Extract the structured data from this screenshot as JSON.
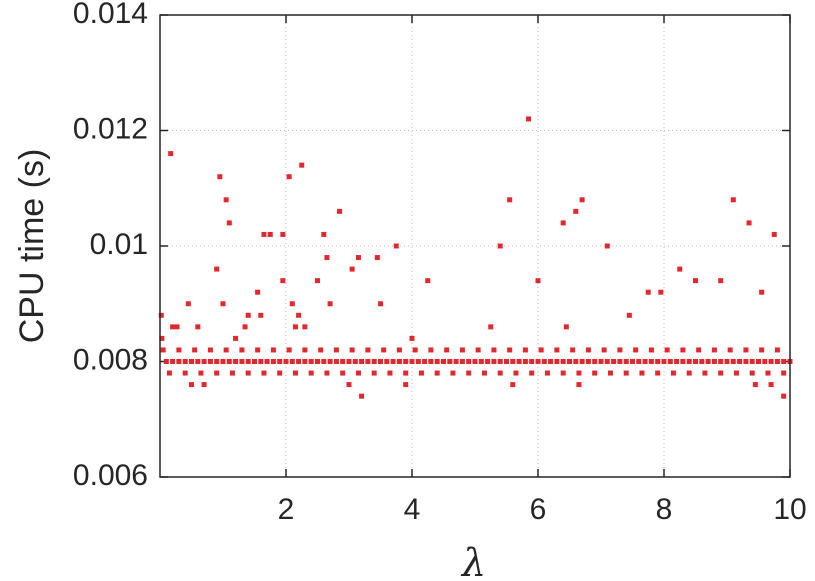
{
  "chart_data": {
    "type": "scatter",
    "x_label": "λ",
    "y_label": "CPU time (s)",
    "xlim": [
      0,
      10
    ],
    "ylim": [
      0.006,
      0.014
    ],
    "xticks": [
      2,
      4,
      6,
      8,
      10
    ],
    "yticks": [
      0.006,
      0.008,
      0.01,
      0.012,
      0.014
    ],
    "grid": true,
    "color": "#e0282e",
    "x": [
      0.1,
      0.2,
      0.3,
      0.4,
      0.5,
      0.6,
      0.7,
      0.8,
      0.9,
      1.0,
      1.1,
      1.2,
      1.3,
      1.4,
      1.5,
      1.6,
      1.7,
      1.8,
      1.9,
      2.0,
      2.1,
      2.2,
      2.3,
      2.4,
      2.5,
      2.6,
      2.7,
      2.8,
      2.9,
      3.0,
      3.1,
      3.2,
      3.3,
      3.4,
      3.5,
      3.6,
      3.7,
      3.8,
      3.9,
      4.0,
      4.1,
      4.2,
      4.3,
      4.4,
      4.5,
      4.6,
      4.7,
      4.8,
      4.9,
      5.0,
      5.1,
      5.2,
      5.3,
      5.4,
      5.5,
      5.6,
      5.7,
      5.8,
      5.9,
      6.0,
      6.1,
      6.2,
      6.3,
      6.4,
      6.5,
      6.6,
      6.7,
      6.8,
      6.9,
      7.0,
      7.1,
      7.2,
      7.3,
      7.4,
      7.5,
      7.6,
      7.7,
      7.8,
      7.9,
      8.0,
      8.1,
      8.2,
      8.3,
      8.4,
      8.5,
      8.6,
      8.7,
      8.8,
      8.9,
      9.0,
      9.1,
      9.2,
      9.3,
      9.4,
      9.5,
      9.6,
      9.7,
      9.8,
      9.9,
      10,
      0.05,
      0.3,
      0.55,
      0.8,
      1.05,
      1.3,
      1.55,
      1.8,
      2.05,
      2.3,
      2.55,
      2.8,
      3.05,
      3.3,
      3.55,
      3.8,
      4.05,
      4.3,
      4.55,
      4.8,
      5.05,
      5.3,
      5.55,
      5.8,
      6.05,
      6.3,
      6.55,
      6.8,
      7.05,
      7.3,
      7.55,
      7.8,
      8.05,
      8.3,
      8.55,
      8.8,
      9.05,
      9.3,
      9.55,
      9.8,
      0.15,
      0.4,
      0.65,
      0.9,
      1.15,
      1.4,
      1.65,
      1.9,
      2.15,
      2.4,
      2.65,
      2.9,
      3.15,
      3.4,
      3.65,
      3.9,
      4.15,
      4.4,
      4.65,
      4.9,
      5.15,
      5.4,
      5.65,
      5.9,
      6.15,
      6.4,
      6.65,
      6.9,
      7.15,
      7.4,
      7.65,
      7.9,
      8.15,
      8.4,
      8.65,
      8.9,
      9.15,
      9.4,
      9.65,
      9.9,
      0.02,
      0.03,
      0.17,
      0.2,
      0.27,
      0.45,
      0.5,
      0.6,
      0.7,
      0.9,
      0.95,
      1.0,
      1.05,
      1.1,
      1.2,
      1.35,
      1.4,
      1.55,
      1.6,
      1.65,
      1.75,
      1.95,
      1.95,
      2.05,
      2.1,
      2.15,
      2.2,
      2.25,
      2.3,
      2.5,
      2.6,
      2.65,
      2.7,
      2.85,
      3.05,
      3.15,
      3.2,
      3.45,
      3.5,
      3.75,
      3.9,
      4.0,
      4.25,
      5.25,
      5.4,
      5.55,
      5.85,
      6.0,
      6.4,
      6.45,
      6.6,
      6.7,
      7.1,
      7.45,
      7.75,
      7.95,
      8.25,
      8.5,
      8.9,
      9.1,
      9.35,
      9.55,
      9.75,
      9.9,
      9.45,
      9.7,
      6.65,
      5.6,
      3.0
    ],
    "values": [
      0.008,
      0.008,
      0.008,
      0.008,
      0.008,
      0.008,
      0.008,
      0.008,
      0.008,
      0.008,
      0.008,
      0.008,
      0.008,
      0.008,
      0.008,
      0.008,
      0.008,
      0.008,
      0.008,
      0.008,
      0.008,
      0.008,
      0.008,
      0.008,
      0.008,
      0.008,
      0.008,
      0.008,
      0.008,
      0.008,
      0.008,
      0.008,
      0.008,
      0.008,
      0.008,
      0.008,
      0.008,
      0.008,
      0.008,
      0.008,
      0.008,
      0.008,
      0.008,
      0.008,
      0.008,
      0.008,
      0.008,
      0.008,
      0.008,
      0.008,
      0.008,
      0.008,
      0.008,
      0.008,
      0.008,
      0.008,
      0.008,
      0.008,
      0.008,
      0.008,
      0.008,
      0.008,
      0.008,
      0.008,
      0.008,
      0.008,
      0.008,
      0.008,
      0.008,
      0.008,
      0.008,
      0.008,
      0.008,
      0.008,
      0.008,
      0.008,
      0.008,
      0.008,
      0.008,
      0.008,
      0.008,
      0.008,
      0.008,
      0.008,
      0.008,
      0.008,
      0.008,
      0.008,
      0.008,
      0.008,
      0.008,
      0.008,
      0.008,
      0.008,
      0.008,
      0.008,
      0.008,
      0.008,
      0.008,
      0.008,
      0.0082,
      0.0082,
      0.0082,
      0.0082,
      0.0082,
      0.0082,
      0.0082,
      0.0082,
      0.0082,
      0.0082,
      0.0082,
      0.0082,
      0.0082,
      0.0082,
      0.0082,
      0.0082,
      0.0082,
      0.0082,
      0.0082,
      0.0082,
      0.0082,
      0.0082,
      0.0082,
      0.0082,
      0.0082,
      0.0082,
      0.0082,
      0.0082,
      0.0082,
      0.0082,
      0.0082,
      0.0082,
      0.0082,
      0.0082,
      0.0082,
      0.0082,
      0.0082,
      0.0082,
      0.0082,
      0.0082,
      0.0078,
      0.0078,
      0.0078,
      0.0078,
      0.0078,
      0.0078,
      0.0078,
      0.0078,
      0.0078,
      0.0078,
      0.0078,
      0.0078,
      0.0078,
      0.0078,
      0.0078,
      0.0078,
      0.0078,
      0.0078,
      0.0078,
      0.0078,
      0.0078,
      0.0078,
      0.0078,
      0.0078,
      0.0078,
      0.0078,
      0.0078,
      0.0078,
      0.0078,
      0.0078,
      0.0078,
      0.0078,
      0.0078,
      0.0078,
      0.0078,
      0.0078,
      0.0078,
      0.0078,
      0.0078,
      0.0078,
      0.0088,
      0.0084,
      0.0116,
      0.0086,
      0.0086,
      0.009,
      0.0076,
      0.0086,
      0.0076,
      0.0096,
      0.0112,
      0.009,
      0.0108,
      0.0104,
      0.0084,
      0.0086,
      0.0088,
      0.0092,
      0.0088,
      0.0102,
      0.0102,
      0.0102,
      0.0094,
      0.0112,
      0.009,
      0.0086,
      0.0088,
      0.0114,
      0.0086,
      0.0094,
      0.0102,
      0.0098,
      0.009,
      0.0106,
      0.0096,
      0.0098,
      0.0074,
      0.0098,
      0.009,
      0.01,
      0.0076,
      0.0084,
      0.0094,
      0.0086,
      0.01,
      0.0108,
      0.0122,
      0.0094,
      0.0104,
      0.0086,
      0.0106,
      0.0108,
      0.01,
      0.0088,
      0.0092,
      0.0092,
      0.0096,
      0.0094,
      0.0094,
      0.0108,
      0.0104,
      0.0092,
      0.0102,
      0.0074,
      0.0076,
      0.0076,
      0.0076,
      0.0076,
      0.0076
    ]
  }
}
